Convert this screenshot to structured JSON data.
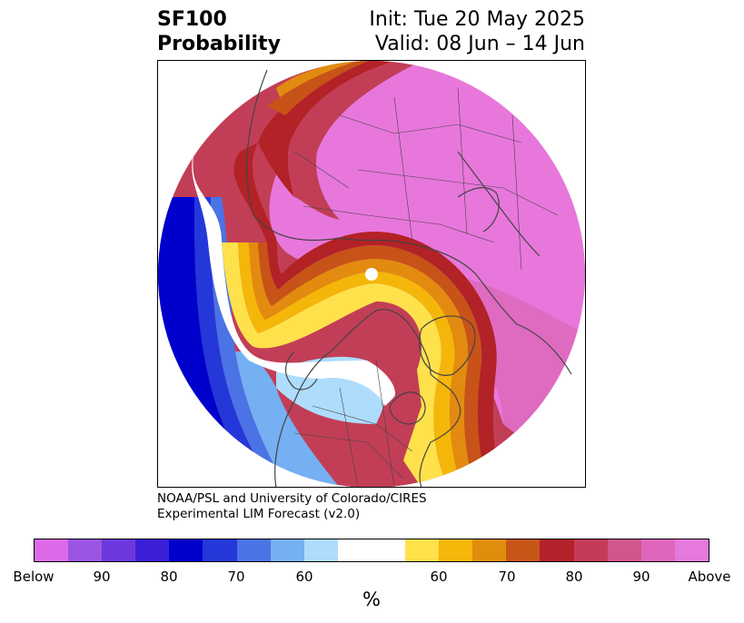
{
  "header": {
    "variable": "SF100",
    "product": "Probability",
    "init": "Init: Tue 20 May 2025",
    "valid": "Valid: 08 Jun – 14 Jun"
  },
  "credit": {
    "line1": "NOAA/PSL and University of Colorado/CIRES",
    "line2": "Experimental LIM Forecast (v2.0)"
  },
  "colorbar": {
    "colors": [
      "#dc6ae8",
      "#9b55e3",
      "#6c38dd",
      "#3b1ed7",
      "#0000cd",
      "#2538d9",
      "#4c74e6",
      "#74b0f2",
      "#aedcfd",
      "#ffffff",
      "#ffffff",
      "#ffe14a",
      "#f5b70a",
      "#e08d0e",
      "#c85518",
      "#b3212a",
      "#c43b57",
      "#d2568e",
      "#df66bc",
      "#e579dc"
    ],
    "ticks": [
      "Below",
      "90",
      "80",
      "70",
      "60",
      "60",
      "70",
      "80",
      "90",
      "Above"
    ],
    "unit": "%"
  },
  "map": {
    "projection": "north polar stereographic",
    "colors": {
      "above_far": "#e877dc",
      "above_mid": "#d35792",
      "above": "#c23e56",
      "strong": "#b22226",
      "orange": "#c75318",
      "amber": "#e28b10",
      "gold": "#f5b60a",
      "yellow": "#ffe14b",
      "neutral": "#ffffff",
      "b60": "#aedcfd",
      "b70": "#74b0f2",
      "b80": "#4b73e6",
      "b85": "#2437d9",
      "b90": "#0000cd",
      "b95": "#3b20d7",
      "border": "#444444"
    }
  }
}
